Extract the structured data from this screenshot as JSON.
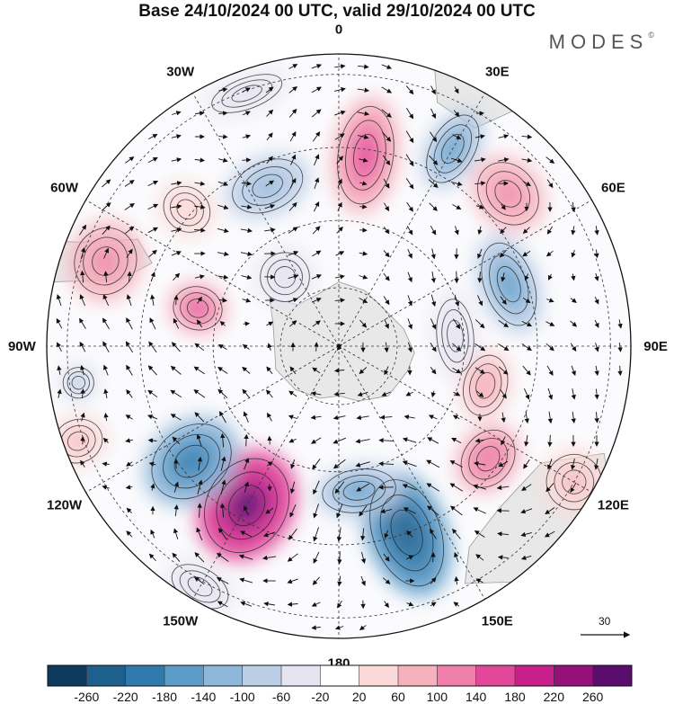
{
  "header": {
    "title": "Base 24/10/2024 00 UTC, valid 29/10/2024 00 UTC",
    "brand": "MODES",
    "brand_mark": "©"
  },
  "map": {
    "projection": "polar-stereographic-south",
    "lon_labels": [
      {
        "text": "0",
        "lon": 0
      },
      {
        "text": "30E",
        "lon": 30
      },
      {
        "text": "60E",
        "lon": 60
      },
      {
        "text": "90E",
        "lon": 90
      },
      {
        "text": "120E",
        "lon": 120
      },
      {
        "text": "150E",
        "lon": 150
      },
      {
        "text": "180",
        "lon": 180
      },
      {
        "text": "150W",
        "lon": -150
      },
      {
        "text": "120W",
        "lon": -120
      },
      {
        "text": "90W",
        "lon": -90
      },
      {
        "text": "60W",
        "lon": -60
      },
      {
        "text": "30W",
        "lon": -30
      }
    ],
    "vector_reference": {
      "value": "30"
    },
    "land_color": "#e8e8e8",
    "coast_color": "#9a9a9a"
  },
  "colorbar": {
    "colors": [
      "#0b3a5c",
      "#1d5f8d",
      "#2f79ad",
      "#5b9bc8",
      "#8fb7da",
      "#bccde6",
      "#e6e4f1",
      "#ffffff",
      "#fad9d8",
      "#f5b1bc",
      "#ef7fa9",
      "#e3479a",
      "#c71f8b",
      "#951079",
      "#5b0d6e"
    ],
    "labels": [
      "-260",
      "-220",
      "-180",
      "-140",
      "-100",
      "-60",
      "-20",
      "20",
      "60",
      "100",
      "140",
      "180",
      "220",
      "260"
    ]
  },
  "anomalies": [
    {
      "lon": 8,
      "r": 0.66,
      "value": 150,
      "rx": 0.09,
      "ry": 0.16
    },
    {
      "lon": 30,
      "r": 0.78,
      "value": -170,
      "rx": 0.07,
      "ry": 0.12
    },
    {
      "lon": 48,
      "r": 0.78,
      "value": 110,
      "rx": 0.11,
      "ry": 0.09
    },
    {
      "lon": 70,
      "r": 0.62,
      "value": -160,
      "rx": 0.14,
      "ry": 0.08
    },
    {
      "lon": 85,
      "r": 0.4,
      "value": -60,
      "rx": 0.12,
      "ry": 0.06
    },
    {
      "lon": 105,
      "r": 0.52,
      "value": 90,
      "rx": 0.1,
      "ry": 0.07
    },
    {
      "lon": 127,
      "r": 0.64,
      "value": 130,
      "rx": 0.1,
      "ry": 0.08
    },
    {
      "lon": 120,
      "r": 0.93,
      "value": 70,
      "rx": 0.09,
      "ry": 0.09
    },
    {
      "lon": 160,
      "r": 0.68,
      "value": -260,
      "rx": 0.11,
      "ry": 0.18
    },
    {
      "lon": 172,
      "r": 0.5,
      "value": -160,
      "rx": 0.12,
      "ry": 0.07
    },
    {
      "lon": -150,
      "r": 0.63,
      "value": 265,
      "rx": 0.13,
      "ry": 0.16
    },
    {
      "lon": -128,
      "r": 0.64,
      "value": -220,
      "rx": 0.11,
      "ry": 0.14
    },
    {
      "lon": -98,
      "r": 0.9,
      "value": -80,
      "rx": 0.05,
      "ry": 0.05
    },
    {
      "lon": -75,
      "r": 0.5,
      "value": 150,
      "rx": 0.07,
      "ry": 0.08
    },
    {
      "lon": -70,
      "r": 0.85,
      "value": 120,
      "rx": 0.11,
      "ry": 0.1
    },
    {
      "lon": -48,
      "r": 0.7,
      "value": 50,
      "rx": 0.07,
      "ry": 0.08
    },
    {
      "lon": -24,
      "r": 0.6,
      "value": -120,
      "rx": 0.12,
      "ry": 0.08
    },
    {
      "lon": -38,
      "r": 0.3,
      "value": -40,
      "rx": 0.08,
      "ry": 0.08
    },
    {
      "lon": -20,
      "r": 0.92,
      "value": -40,
      "rx": 0.12,
      "ry": 0.05
    },
    {
      "lon": -150,
      "r": 0.95,
      "value": -40,
      "rx": 0.1,
      "ry": 0.06
    },
    {
      "lon": -110,
      "r": 0.95,
      "value": 60,
      "rx": 0.07,
      "ry": 0.08
    }
  ]
}
